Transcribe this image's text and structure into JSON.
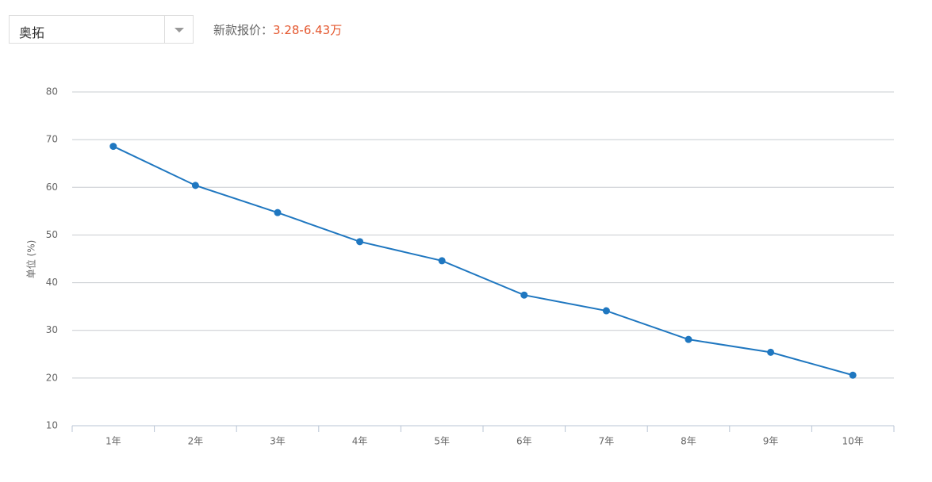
{
  "header": {
    "model": "奥拓",
    "price_label": "新款报价：",
    "price": "3.28-6.43万"
  },
  "chart_data": {
    "type": "line",
    "y_label": "单位 (%)",
    "categories": [
      "1年",
      "2年",
      "3年",
      "4年",
      "5年",
      "6年",
      "7年",
      "8年",
      "9年",
      "10年"
    ],
    "values": [
      68.6,
      60.4,
      54.7,
      48.6,
      44.6,
      37.4,
      34.1,
      28.1,
      25.4,
      20.6
    ],
    "color": "#1f77c0",
    "ylim": [
      10,
      80
    ],
    "yticks": [
      10,
      20,
      30,
      40,
      50,
      60,
      70,
      80
    ],
    "grid": true
  }
}
